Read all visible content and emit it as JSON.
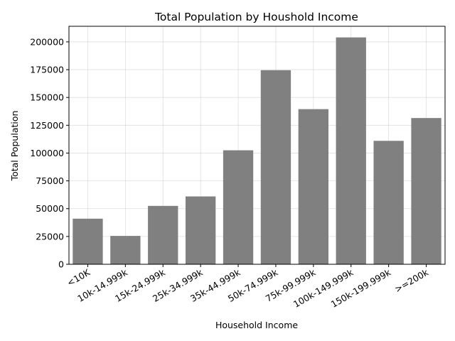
{
  "chart_data": {
    "type": "bar",
    "title": "Total Population by Houshold Income",
    "xlabel": "Household Income",
    "ylabel": "Total Population",
    "categories": [
      "<10K",
      "10k-14.999k",
      "15k-24.999k",
      "25k-34.999k",
      "35k-44.999k",
      "50k-74.999k",
      "75k-99.999k",
      "100k-149.999k",
      "150k-199.999k",
      ">=200k"
    ],
    "values": [
      41000,
      25500,
      52500,
      61000,
      102500,
      174500,
      139500,
      204000,
      111000,
      131500
    ],
    "ylim": [
      0,
      214000
    ],
    "yticks": [
      0,
      25000,
      50000,
      75000,
      100000,
      125000,
      150000,
      175000,
      200000
    ],
    "grid": true,
    "bar_color": "#808080"
  }
}
